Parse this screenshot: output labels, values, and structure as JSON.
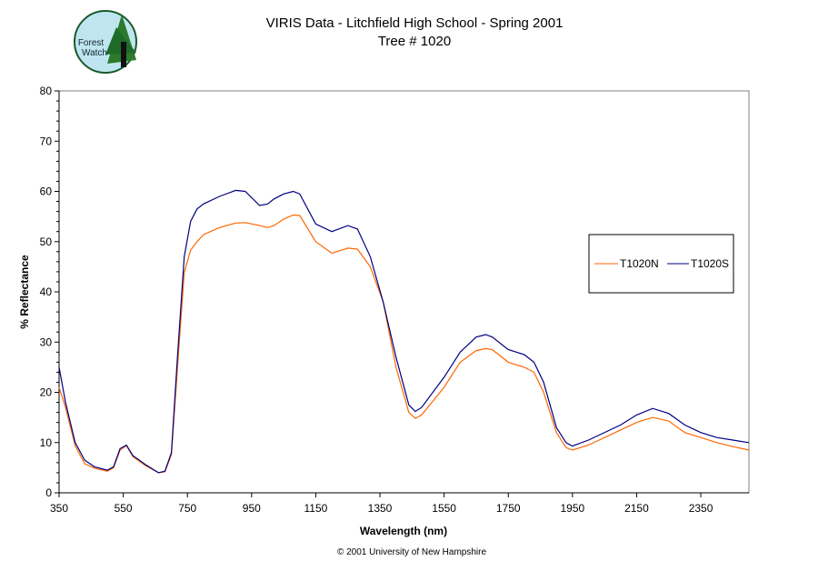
{
  "logo": {
    "text_line1": "Forest",
    "text_line2": "Watch"
  },
  "footer": "© 2001 University of New Hampshire",
  "chart_data": {
    "type": "line",
    "title": "VIRIS Data - Litchfield High School - Spring 2001",
    "subtitle": "Tree # 1020",
    "xlabel": "Wavelength (nm)",
    "ylabel": "% Reflectance",
    "xlim": [
      350,
      2500
    ],
    "ylim": [
      0,
      80
    ],
    "xticks": [
      350,
      550,
      750,
      950,
      1150,
      1350,
      1550,
      1750,
      1950,
      2150,
      2350
    ],
    "yticks": [
      0,
      10,
      20,
      30,
      40,
      50,
      60,
      70,
      80
    ],
    "grid": false,
    "legend": "right",
    "x": [
      350,
      370,
      400,
      430,
      460,
      500,
      520,
      540,
      560,
      580,
      620,
      660,
      680,
      700,
      720,
      740,
      760,
      780,
      800,
      850,
      900,
      930,
      975,
      1000,
      1020,
      1050,
      1080,
      1100,
      1150,
      1200,
      1250,
      1280,
      1320,
      1360,
      1400,
      1440,
      1460,
      1480,
      1550,
      1600,
      1650,
      1680,
      1700,
      1750,
      1800,
      1830,
      1860,
      1900,
      1930,
      1950,
      2000,
      2100,
      2150,
      2200,
      2250,
      2300,
      2350,
      2400,
      2450,
      2500
    ],
    "series": [
      {
        "name": "T1020N",
        "color": "#ff6600",
        "values": [
          21,
          17,
          9.4,
          5.8,
          4.9,
          4.3,
          5,
          8.5,
          9.4,
          7.2,
          5.4,
          4,
          4.2,
          7.6,
          25.7,
          43.8,
          48.3,
          50,
          51.4,
          52.8,
          53.7,
          53.8,
          53.2,
          52.8,
          53.2,
          54.5,
          55.3,
          55.2,
          50,
          47.7,
          48.7,
          48.5,
          45,
          38,
          25,
          16,
          14.8,
          15.5,
          21,
          26,
          28.3,
          28.7,
          28.5,
          26,
          25,
          24,
          20,
          12,
          9,
          8.5,
          9.5,
          12.5,
          14,
          15,
          14.3,
          12,
          11,
          10,
          9.2,
          8.5
        ]
      },
      {
        "name": "T1020S",
        "color": "#000080",
        "values": [
          25,
          18,
          10,
          6.5,
          5.2,
          4.5,
          5.2,
          8.8,
          9.5,
          7.4,
          5.6,
          4,
          4.3,
          8,
          28,
          47,
          54,
          56.5,
          57.5,
          59,
          60.2,
          60,
          57.2,
          57.5,
          58.5,
          59.5,
          60,
          59.5,
          53.5,
          52,
          53.2,
          52.5,
          47,
          38,
          27,
          17.5,
          16.2,
          17,
          23,
          28,
          31,
          31.5,
          31,
          28.5,
          27.5,
          26,
          22,
          13,
          10,
          9.3,
          10.5,
          13.5,
          15.5,
          16.8,
          15.8,
          13.5,
          12,
          11,
          10.5,
          10
        ]
      }
    ]
  }
}
